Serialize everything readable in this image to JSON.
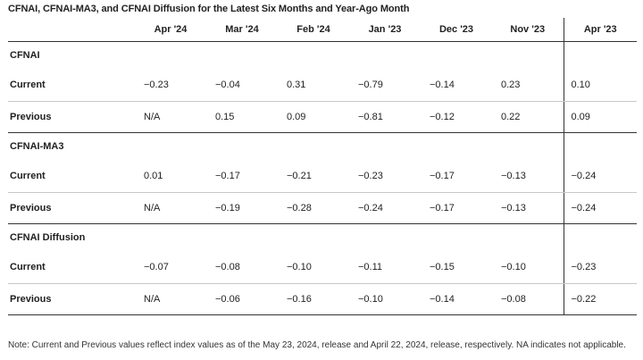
{
  "title": "CFNAI, CFNAI-MA3, and CFNAI Diffusion for the Latest Six Months and Year-Ago Month",
  "columns": [
    "Apr '24",
    "Mar '24",
    "Feb '24",
    "Jan '23",
    "Dec '23",
    "Nov '23",
    "Apr '23"
  ],
  "sections": [
    {
      "name": "CFNAI",
      "rows": [
        {
          "label": "Current",
          "values": [
            "−0.23",
            "−0.04",
            "0.31",
            "−0.79",
            "−0.14",
            "0.23",
            "0.10"
          ]
        },
        {
          "label": "Previous",
          "values": [
            "N/A",
            "0.15",
            "0.09",
            "−0.81",
            "−0.12",
            "0.22",
            "0.09"
          ]
        }
      ]
    },
    {
      "name": "CFNAI-MA3",
      "rows": [
        {
          "label": "Current",
          "values": [
            "0.01",
            "−0.17",
            "−0.21",
            "−0.23",
            "−0.17",
            "−0.13",
            "−0.24"
          ]
        },
        {
          "label": "Previous",
          "values": [
            "N/A",
            "−0.19",
            "−0.28",
            "−0.24",
            "−0.17",
            "−0.13",
            "−0.24"
          ]
        }
      ]
    },
    {
      "name": "CFNAI Diffusion",
      "rows": [
        {
          "label": "Current",
          "values": [
            "−0.07",
            "−0.08",
            "−0.10",
            "−0.11",
            "−0.15",
            "−0.10",
            "−0.23"
          ]
        },
        {
          "label": "Previous",
          "values": [
            "N/A",
            "−0.06",
            "−0.16",
            "−0.10",
            "−0.14",
            "−0.08",
            "−0.22"
          ]
        }
      ]
    }
  ],
  "note": "Note: Current and Previous values reflect index values as of the May 23, 2024, release and April 22, 2024, release, respectively. NA indicates not applicable."
}
